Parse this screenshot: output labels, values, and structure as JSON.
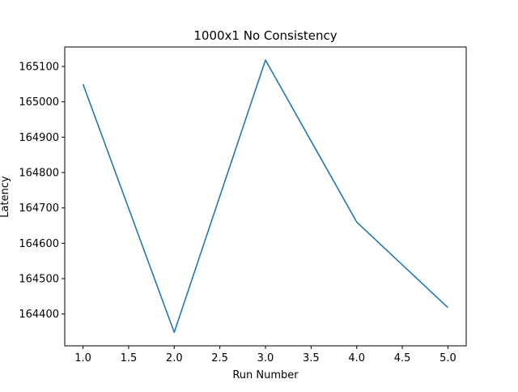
{
  "chart_data": {
    "type": "line",
    "title": "1000x1 No Consistency",
    "xlabel": "Run Number",
    "ylabel": "Latency",
    "x": [
      1,
      2,
      3,
      4,
      5
    ],
    "series": [
      {
        "values": [
          165050,
          164348,
          165118,
          164660,
          164418
        ],
        "color": "#1f77b4"
      }
    ],
    "xlim": [
      0.8,
      5.2
    ],
    "ylim": [
      164310,
      165155
    ],
    "xticks": [
      1.0,
      1.5,
      2.0,
      2.5,
      3.0,
      3.5,
      4.0,
      4.5,
      5.0
    ],
    "xtick_labels": [
      "1.0",
      "1.5",
      "2.0",
      "2.5",
      "3.0",
      "3.5",
      "4.0",
      "4.5",
      "5.0"
    ],
    "yticks": [
      164400,
      164500,
      164600,
      164700,
      164800,
      164900,
      165000,
      165100
    ],
    "ytick_labels": [
      "164400",
      "164500",
      "164600",
      "164700",
      "164800",
      "164900",
      "165000",
      "165100"
    ],
    "grid": false,
    "legend": "none"
  }
}
